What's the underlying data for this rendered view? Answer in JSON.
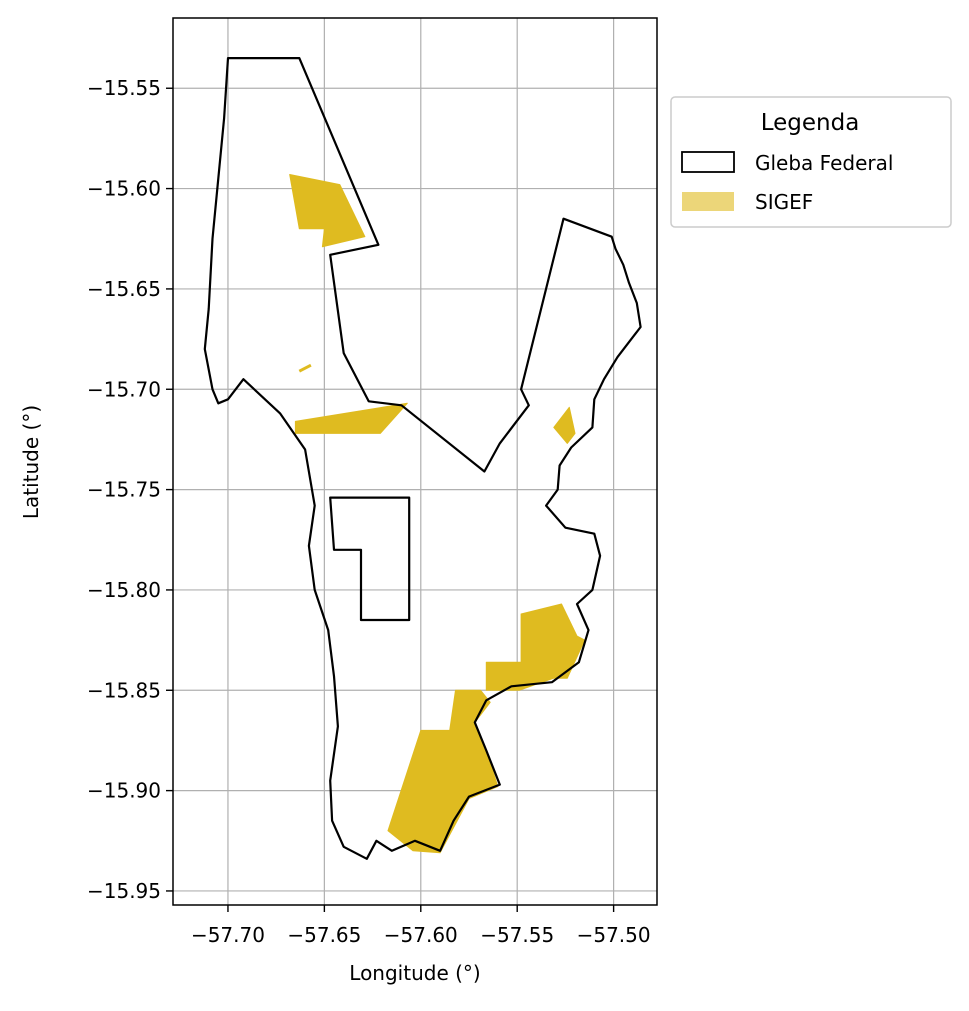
{
  "chart_data": {
    "type": "map",
    "xlabel": "Longitude (°)",
    "ylabel": "Latitude (°)",
    "xlim": [
      -57.7285,
      -57.4775
    ],
    "ylim": [
      -15.957,
      -15.515
    ],
    "xticks": [
      -57.7,
      -57.65,
      -57.6,
      -57.55,
      -57.5
    ],
    "xtick_labels": [
      "−57.70",
      "−57.65",
      "−57.60",
      "−57.55",
      "−57.50"
    ],
    "yticks": [
      -15.55,
      -15.6,
      -15.65,
      -15.7,
      -15.75,
      -15.8,
      -15.85,
      -15.9,
      -15.95
    ],
    "ytick_labels": [
      "−15.55",
      "−15.60",
      "−15.65",
      "−15.70",
      "−15.75",
      "−15.80",
      "−15.85",
      "−15.90",
      "−15.95"
    ],
    "grid": true,
    "legend": {
      "title": "Legenda",
      "position": "outside-upper-right",
      "entries": [
        {
          "label": "Gleba Federal",
          "style": "outline",
          "color": "#000000"
        },
        {
          "label": "SIGEF",
          "style": "fill",
          "color": "#DFBB20"
        }
      ]
    },
    "layers": [
      {
        "name": "Gleba Federal",
        "kind": "outline",
        "color": "#000000",
        "polygons": [
          [
            [
              -57.7,
              -15.535
            ],
            [
              -57.663,
              -15.535
            ],
            [
              -57.622,
              -15.628
            ],
            [
              -57.647,
              -15.633
            ],
            [
              -57.64,
              -15.682
            ],
            [
              -57.627,
              -15.706
            ],
            [
              -57.61,
              -15.708
            ],
            [
              -57.567,
              -15.741
            ],
            [
              -57.559,
              -15.727
            ],
            [
              -57.544,
              -15.708
            ],
            [
              -57.548,
              -15.7
            ],
            [
              -57.526,
              -15.615
            ],
            [
              -57.501,
              -15.624
            ],
            [
              -57.499,
              -15.63
            ],
            [
              -57.495,
              -15.638
            ],
            [
              -57.492,
              -15.647
            ],
            [
              -57.488,
              -15.657
            ],
            [
              -57.486,
              -15.669
            ],
            [
              -57.498,
              -15.684
            ],
            [
              -57.505,
              -15.695
            ],
            [
              -57.51,
              -15.705
            ],
            [
              -57.511,
              -15.719
            ],
            [
              -57.522,
              -15.729
            ],
            [
              -57.528,
              -15.738
            ],
            [
              -57.529,
              -15.75
            ],
            [
              -57.535,
              -15.758
            ],
            [
              -57.525,
              -15.769
            ],
            [
              -57.51,
              -15.772
            ],
            [
              -57.507,
              -15.783
            ],
            [
              -57.511,
              -15.8
            ],
            [
              -57.519,
              -15.807
            ],
            [
              -57.513,
              -15.82
            ],
            [
              -57.518,
              -15.836
            ],
            [
              -57.532,
              -15.846
            ],
            [
              -57.553,
              -15.848
            ],
            [
              -57.566,
              -15.855
            ],
            [
              -57.572,
              -15.866
            ],
            [
              -57.566,
              -15.88
            ],
            [
              -57.559,
              -15.897
            ],
            [
              -57.575,
              -15.903
            ],
            [
              -57.583,
              -15.915
            ],
            [
              -57.59,
              -15.93
            ],
            [
              -57.603,
              -15.925
            ],
            [
              -57.615,
              -15.93
            ],
            [
              -57.623,
              -15.925
            ],
            [
              -57.628,
              -15.934
            ],
            [
              -57.64,
              -15.928
            ],
            [
              -57.646,
              -15.915
            ],
            [
              -57.647,
              -15.895
            ],
            [
              -57.643,
              -15.868
            ],
            [
              -57.645,
              -15.843
            ],
            [
              -57.648,
              -15.82
            ],
            [
              -57.655,
              -15.8
            ],
            [
              -57.658,
              -15.778
            ],
            [
              -57.655,
              -15.758
            ],
            [
              -57.66,
              -15.73
            ],
            [
              -57.673,
              -15.712
            ],
            [
              -57.692,
              -15.695
            ],
            [
              -57.7,
              -15.705
            ],
            [
              -57.705,
              -15.707
            ],
            [
              -57.708,
              -15.7
            ],
            [
              -57.712,
              -15.68
            ],
            [
              -57.71,
              -15.66
            ],
            [
              -57.708,
              -15.625
            ],
            [
              -57.705,
              -15.595
            ],
            [
              -57.702,
              -15.565
            ],
            [
              -57.7,
              -15.535
            ]
          ],
          [
            [
              -57.647,
              -15.754
            ],
            [
              -57.606,
              -15.754
            ],
            [
              -57.606,
              -15.815
            ],
            [
              -57.631,
              -15.815
            ],
            [
              -57.631,
              -15.78
            ],
            [
              -57.645,
              -15.78
            ],
            [
              -57.647,
              -15.754
            ]
          ]
        ]
      },
      {
        "name": "SIGEF",
        "kind": "fill",
        "color": "#DFBB20",
        "polygons": [
          [
            [
              -57.668,
              -15.593
            ],
            [
              -57.642,
              -15.598
            ],
            [
              -57.629,
              -15.624
            ],
            [
              -57.651,
              -15.629
            ],
            [
              -57.65,
              -15.62
            ],
            [
              -57.663,
              -15.62
            ]
          ],
          [
            [
              -57.665,
              -15.716
            ],
            [
              -57.607,
              -15.707
            ],
            [
              -57.621,
              -15.722
            ],
            [
              -57.665,
              -15.722
            ]
          ],
          [
            [
              -57.663,
              -15.691
            ],
            [
              -57.657,
              -15.688
            ]
          ],
          [
            [
              -57.531,
              -15.719
            ],
            [
              -57.523,
              -15.709
            ],
            [
              -57.52,
              -15.722
            ],
            [
              -57.524,
              -15.727
            ]
          ],
          [
            [
              -57.548,
              -15.812
            ],
            [
              -57.527,
              -15.807
            ],
            [
              -57.519,
              -15.823
            ],
            [
              -57.515,
              -15.825
            ],
            [
              -57.524,
              -15.844
            ],
            [
              -57.531,
              -15.844
            ],
            [
              -57.549,
              -15.85
            ],
            [
              -57.566,
              -15.85
            ],
            [
              -57.566,
              -15.836
            ],
            [
              -57.548,
              -15.836
            ]
          ],
          [
            [
              -57.569,
              -15.85
            ],
            [
              -57.582,
              -15.85
            ],
            [
              -57.585,
              -15.87
            ],
            [
              -57.6,
              -15.87
            ],
            [
              -57.617,
              -15.92
            ],
            [
              -57.604,
              -15.93
            ],
            [
              -57.59,
              -15.931
            ],
            [
              -57.575,
              -15.904
            ],
            [
              -57.56,
              -15.898
            ],
            [
              -57.566,
              -15.88
            ],
            [
              -57.572,
              -15.866
            ],
            [
              -57.564,
              -15.856
            ]
          ]
        ]
      }
    ]
  }
}
